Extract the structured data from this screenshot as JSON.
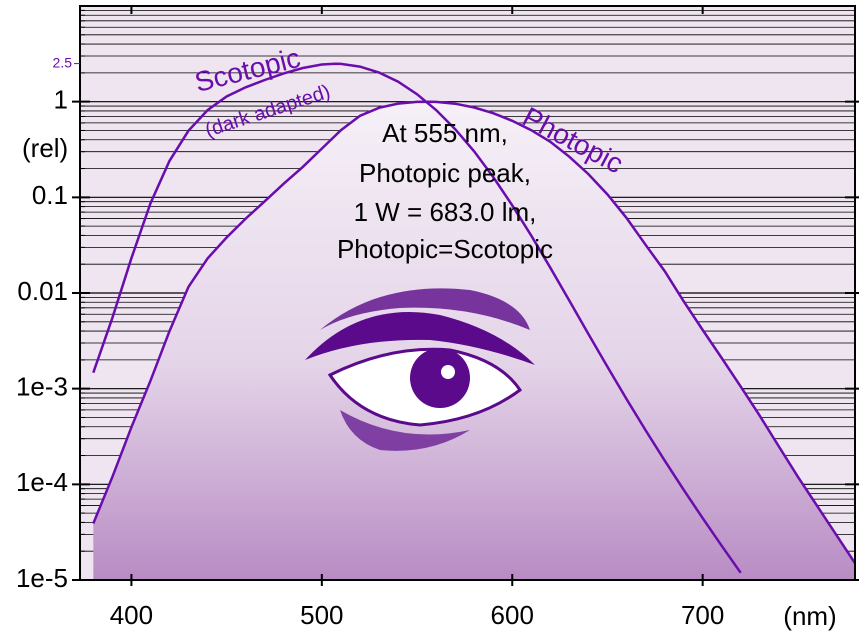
{
  "chart_data": {
    "type": "line",
    "log_y": true,
    "grid": true,
    "minor_grid": true,
    "x_label": "(nm)",
    "y_label": "(rel)",
    "xlim": [
      373,
      780
    ],
    "ylim": [
      1e-05,
      10
    ],
    "xticks": [
      400,
      500,
      600,
      700
    ],
    "yticks": [
      {
        "value": 1e-05,
        "label": "1e-5"
      },
      {
        "value": 0.0001,
        "label": "1e-4"
      },
      {
        "value": 0.001,
        "label": "1e-3"
      },
      0.01,
      0.1,
      1
    ],
    "extra_yticks": [
      2.5
    ],
    "annotations": [
      "Scotopic",
      "(dark adapted)",
      "Photopic",
      "At 555 nm,",
      "Photopic peak,",
      "1 W = 683.0 lm,",
      "Photopic=Scotopic"
    ],
    "series": [
      {
        "name": "Photopic",
        "color": "#6a0dad",
        "fill": true,
        "x": [
          380,
          390,
          400,
          410,
          420,
          430,
          440,
          450,
          460,
          470,
          480,
          490,
          500,
          510,
          520,
          530,
          540,
          550,
          555,
          560,
          570,
          580,
          590,
          600,
          610,
          620,
          630,
          640,
          650,
          660,
          670,
          680,
          690,
          700,
          710,
          720,
          730,
          740,
          750,
          760,
          770,
          780
        ],
        "values": [
          3.9e-05,
          0.00012,
          0.000396,
          0.00121,
          0.004,
          0.0116,
          0.023,
          0.038,
          0.06,
          0.091,
          0.139,
          0.208,
          0.323,
          0.503,
          0.71,
          0.862,
          0.954,
          0.995,
          1,
          0.995,
          0.952,
          0.87,
          0.757,
          0.631,
          0.503,
          0.381,
          0.265,
          0.175,
          0.107,
          0.061,
          0.032,
          0.017,
          0.00821,
          0.0041,
          0.00209,
          0.00105,
          0.00052,
          0.000249,
          0.00012,
          6e-05,
          3e-05,
          1.5e-05
        ]
      },
      {
        "name": "Scotopic",
        "color": "#6a0dad",
        "fill": false,
        "x": [
          380,
          390,
          400,
          410,
          420,
          430,
          440,
          450,
          460,
          470,
          480,
          490,
          500,
          507,
          510,
          520,
          530,
          540,
          550,
          560,
          570,
          580,
          590,
          600,
          610,
          620,
          630,
          640,
          650,
          660,
          670,
          680,
          690,
          700,
          710,
          720
        ],
        "values": [
          0.00147,
          0.0055,
          0.0231,
          0.0868,
          0.2405,
          0.4975,
          0.817,
          1.133,
          1.412,
          1.683,
          1.975,
          2.251,
          2.445,
          2.49,
          2.483,
          2.328,
          2.019,
          1.619,
          1.198,
          0.819,
          0.517,
          0.302,
          0.163,
          0.0825,
          0.0397,
          0.0184,
          0.0083,
          0.00373,
          0.00169,
          0.00078,
          0.000369,
          0.000178,
          8.79e-05,
          4.43e-05,
          2.28e-05,
          1.19e-05
        ]
      }
    ]
  }
}
